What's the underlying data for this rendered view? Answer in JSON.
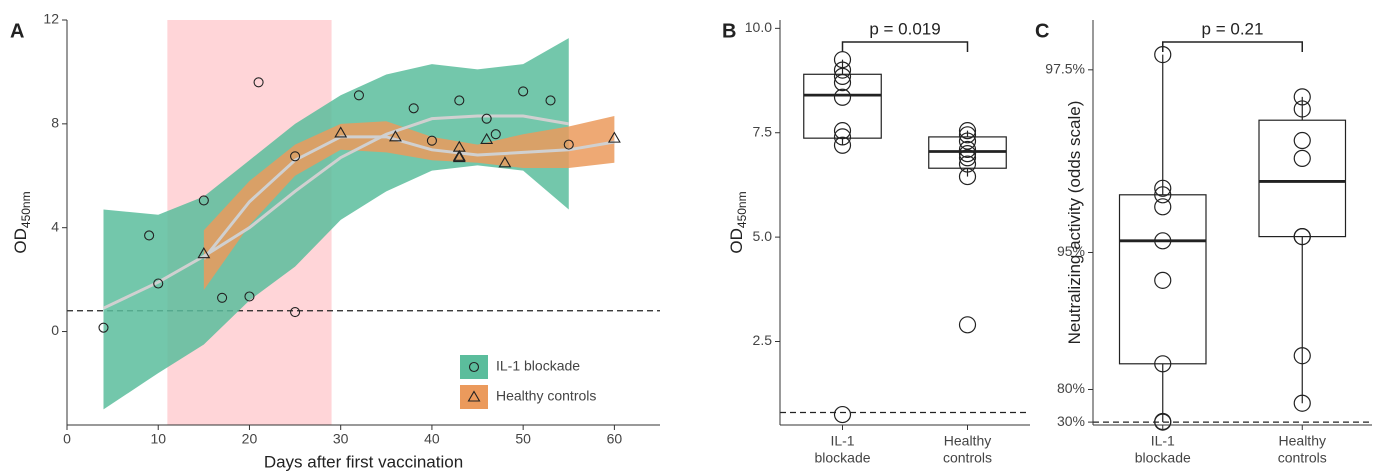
{
  "chart_data": [
    {
      "type": "scatter",
      "panel": "A",
      "xlabel": "Days after first vaccination",
      "ylabel": {
        "main": "OD",
        "sub": "450nm"
      },
      "xlim": [
        0,
        65
      ],
      "xticks": [
        0,
        10,
        20,
        30,
        40,
        50,
        60
      ],
      "ylim": [
        -3.6,
        12
      ],
      "yticks": [
        0,
        4,
        8,
        12
      ],
      "shade": {
        "x": [
          11,
          29
        ],
        "color": "#ffd5d8"
      },
      "hline": 0.8,
      "legend": "bottom-right",
      "series": [
        {
          "name": "IL-1 blockade",
          "color": "#5bbd9c",
          "marker": "circle",
          "x": [
            4,
            9,
            10,
            15,
            17,
            20,
            21,
            25,
            25,
            32,
            38,
            40,
            43,
            46,
            47,
            50,
            53,
            55
          ],
          "values": [
            0.15,
            3.7,
            1.85,
            5.05,
            1.3,
            1.35,
            9.6,
            6.75,
            0.75,
            9.1,
            8.6,
            7.35,
            8.9,
            8.2,
            7.6,
            9.25,
            8.9,
            7.2
          ],
          "fit": {
            "x": [
              4,
              10,
              15,
              20,
              25,
              30,
              35,
              40,
              45,
              50,
              55
            ],
            "y": [
              0.9,
              1.9,
              2.9,
              4.0,
              5.4,
              6.7,
              7.6,
              8.2,
              8.3,
              8.3,
              8.0
            ],
            "lower": [
              -3.0,
              -1.6,
              -0.5,
              1.2,
              2.5,
              4.3,
              5.4,
              6.2,
              6.4,
              6.2,
              4.7
            ],
            "upper": [
              4.7,
              4.5,
              5.2,
              6.6,
              8.0,
              9.1,
              9.9,
              10.3,
              10.1,
              10.3,
              11.3
            ]
          }
        },
        {
          "name": "Healthy controls",
          "color": "#eb9a5c",
          "marker": "triangle",
          "x": [
            15,
            30,
            36,
            43,
            43,
            43,
            46,
            48,
            60
          ],
          "values": [
            3.0,
            7.65,
            7.5,
            7.1,
            6.75,
            6.7,
            7.4,
            6.5,
            7.45
          ],
          "fit": {
            "x": [
              15,
              20,
              25,
              30,
              35,
              40,
              45,
              50,
              55,
              60
            ],
            "y": [
              2.8,
              5.0,
              6.6,
              7.5,
              7.5,
              7.0,
              6.8,
              6.9,
              7.0,
              7.3
            ],
            "lower": [
              1.6,
              4.1,
              6.0,
              7.0,
              6.9,
              6.6,
              6.5,
              6.3,
              6.3,
              6.5
            ],
            "upper": [
              3.9,
              5.8,
              7.2,
              8.0,
              8.1,
              7.5,
              7.2,
              7.6,
              7.9,
              8.3
            ]
          }
        }
      ]
    },
    {
      "type": "box",
      "panel": "B",
      "ylabel": {
        "main": "OD",
        "sub": "450nm"
      },
      "ylim": [
        0.5,
        10.2
      ],
      "yticks": [
        2.5,
        {
          "value": 5,
          "label": "5.0"
        },
        7.5,
        {
          "value": 10,
          "label": "10.0"
        }
      ],
      "hline": 0.8,
      "pvalue": "p = 0.019",
      "categories": [
        [
          "IL-1",
          "blockade"
        ],
        [
          "Healthy",
          "controls"
        ]
      ],
      "boxes": [
        {
          "q1": 7.37,
          "median": 8.4,
          "q3": 8.9,
          "whisker_low": 7.2,
          "whisker_high": 9.25,
          "points": [
            9.25,
            9.0,
            8.85,
            8.7,
            8.35,
            7.55,
            7.4,
            7.2,
            0.75
          ]
        },
        {
          "q1": 6.65,
          "median": 7.05,
          "q3": 7.4,
          "whisker_low": 6.45,
          "whisker_high": 7.55,
          "points": [
            7.55,
            7.45,
            7.3,
            7.1,
            7.0,
            6.9,
            6.75,
            6.45,
            2.9
          ]
        }
      ]
    },
    {
      "type": "box",
      "panel": "C",
      "ylabel": {
        "main": "Neutralizing activity (odds scale)"
      },
      "yscale": "odds",
      "ylim": [
        10,
        97.8
      ],
      "yticks": [
        {
          "value": 30,
          "label": "30%"
        },
        {
          "value": 80,
          "label": "80%"
        },
        {
          "value": 95,
          "label": "95%"
        },
        {
          "value": 97.5,
          "label": "97.5%"
        }
      ],
      "hline": 30,
      "pvalue": "p = 0.21",
      "categories": [
        [
          "IL-1",
          "blockade"
        ],
        [
          "Healthy",
          "controls"
        ]
      ],
      "boxes": [
        {
          "q1": 87.2,
          "median": 95.3,
          "q3": 96.2,
          "whisker_low": 30,
          "whisker_high": 97.6,
          "points": [
            97.6,
            96.3,
            96.2,
            96.0,
            95.3,
            94.1,
            87.2,
            33,
            30
          ]
        },
        {
          "q1": 95.4,
          "median": 96.4,
          "q3": 97.1,
          "whisker_low": 71.4,
          "whisker_high": 97.3,
          "points": [
            97.3,
            97.2,
            96.9,
            96.7,
            95.4,
            95.4,
            88.5,
            71.4
          ]
        }
      ]
    }
  ]
}
